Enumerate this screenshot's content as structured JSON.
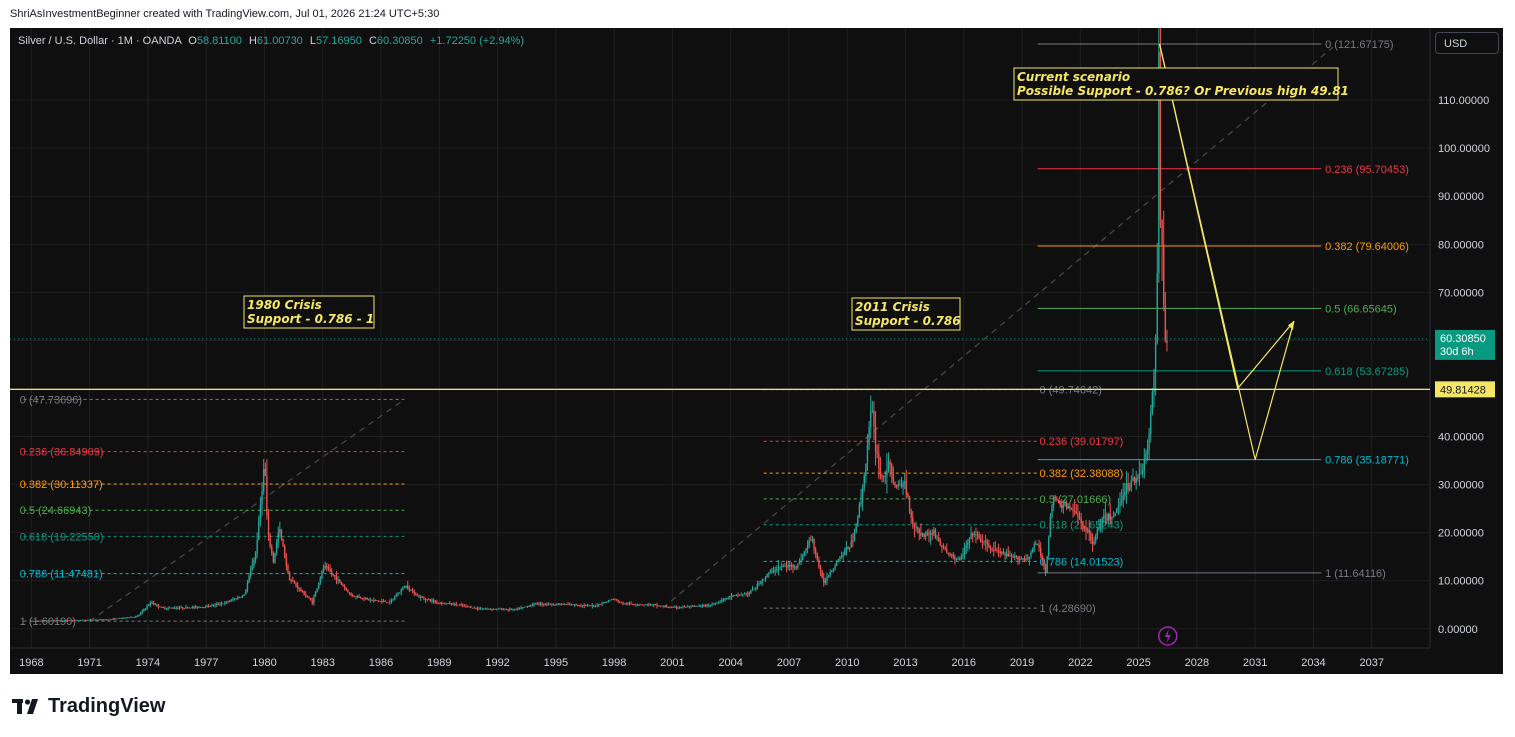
{
  "attribution": "ShriAsInvestmentBeginner created with TradingView.com, Jul 01, 2026 21:24 UTC+5:30",
  "legend": {
    "symbol": "Silver / U.S. Dollar · 1M · OANDA",
    "o_label": "O",
    "o": "58.81100",
    "h_label": "H",
    "h": "61.00730",
    "l_label": "L",
    "l": "57.16950",
    "c_label": "C",
    "c": "60.30850",
    "change": "+1.72250 (+2.94%)"
  },
  "currency_button": "USD",
  "brand": "TradingView",
  "colors": {
    "background": "#0f0f0f",
    "up": "#26a69a",
    "down": "#ef5350",
    "annotation": "#f5e663",
    "fib_0": "#787b86",
    "fib_236": "#f23645",
    "fib_382": "#ff9800",
    "fib_5": "#4caf50",
    "fib_618": "#089981",
    "fib_786": "#00bcd4",
    "price_badge": "#089981"
  },
  "chart_data": {
    "type": "candlestick",
    "title": "Silver / U.S. Dollar · 1M · OANDA",
    "y_axis_ticks": [
      "110.00000",
      "100.00000",
      "90.00000",
      "80.00000",
      "70.00000",
      "60.00000",
      "50.00000",
      "40.00000",
      "30.00000",
      "20.00000",
      "10.00000",
      "0.00000"
    ],
    "y_axis_tick_values": [
      110,
      100,
      90,
      80,
      70,
      60,
      50,
      40,
      30,
      20,
      10,
      0
    ],
    "ylim": [
      -4,
      125
    ],
    "x_axis_ticks": [
      "1968",
      "1971",
      "1974",
      "1977",
      "1980",
      "1983",
      "1986",
      "1989",
      "1992",
      "1995",
      "1998",
      "2001",
      "2004",
      "2007",
      "2010",
      "2013",
      "2016",
      "2019",
      "2022",
      "2025",
      "2028",
      "2031",
      "2034",
      "2037"
    ],
    "x_axis_tick_values": [
      1968,
      1971,
      1974,
      1977,
      1980,
      1983,
      1986,
      1989,
      1992,
      1995,
      1998,
      2001,
      2004,
      2007,
      2010,
      2013,
      2016,
      2019,
      2022,
      2025,
      2028,
      2031,
      2034,
      2037
    ],
    "xlim": [
      1966.9,
      2040.0
    ],
    "current_price": {
      "value": 60.3085,
      "label": "60.30850",
      "countdown": "30d 6h"
    },
    "horizontal_line": {
      "value": 49.81428,
      "label": "49.81428"
    },
    "price_path": [
      [
        1968.0,
        1.6
      ],
      [
        1970.0,
        1.75
      ],
      [
        1972.0,
        1.9
      ],
      [
        1973.5,
        2.6
      ],
      [
        1974.2,
        5.5
      ],
      [
        1974.8,
        4.3
      ],
      [
        1976.0,
        4.4
      ],
      [
        1977.0,
        4.6
      ],
      [
        1978.0,
        5.4
      ],
      [
        1979.0,
        7.0
      ],
      [
        1979.6,
        16.0
      ],
      [
        1980.05,
        35.0
      ],
      [
        1980.2,
        20.0
      ],
      [
        1980.5,
        14.0
      ],
      [
        1980.8,
        21.0
      ],
      [
        1981.3,
        10.5
      ],
      [
        1982.5,
        5.5
      ],
      [
        1983.1,
        13.0
      ],
      [
        1983.5,
        11.5
      ],
      [
        1984.5,
        7.0
      ],
      [
        1985.5,
        6.0
      ],
      [
        1986.5,
        5.5
      ],
      [
        1987.3,
        9.0
      ],
      [
        1988.0,
        6.6
      ],
      [
        1989.0,
        5.4
      ],
      [
        1990.0,
        5.0
      ],
      [
        1991.0,
        4.2
      ],
      [
        1993.0,
        4.0
      ],
      [
        1994.0,
        5.2
      ],
      [
        1995.0,
        5.1
      ],
      [
        1996.0,
        5.0
      ],
      [
        1997.0,
        4.7
      ],
      [
        1998.0,
        6.2
      ],
      [
        1998.5,
        5.2
      ],
      [
        2000.0,
        5.0
      ],
      [
        2001.0,
        4.4
      ],
      [
        2002.0,
        4.6
      ],
      [
        2003.0,
        4.9
      ],
      [
        2004.0,
        6.7
      ],
      [
        2005.0,
        7.4
      ],
      [
        2006.0,
        11.5
      ],
      [
        2006.5,
        12.8
      ],
      [
        2007.5,
        13.2
      ],
      [
        2008.2,
        19.0
      ],
      [
        2008.8,
        9.5
      ],
      [
        2009.5,
        14.0
      ],
      [
        2010.3,
        18.0
      ],
      [
        2010.8,
        28.0
      ],
      [
        2011.3,
        46.0
      ],
      [
        2011.5,
        38.0
      ],
      [
        2011.8,
        31.0
      ],
      [
        2012.2,
        34.0
      ],
      [
        2012.6,
        29.0
      ],
      [
        2013.0,
        30.5
      ],
      [
        2013.4,
        22.0
      ],
      [
        2013.9,
        19.5
      ],
      [
        2014.5,
        20.0
      ],
      [
        2015.0,
        16.5
      ],
      [
        2015.8,
        14.0
      ],
      [
        2016.5,
        20.0
      ],
      [
        2017.5,
        16.5
      ],
      [
        2018.5,
        14.8
      ],
      [
        2019.3,
        14.5
      ],
      [
        2019.8,
        18.0
      ],
      [
        2020.25,
        12.0
      ],
      [
        2020.6,
        27.0
      ],
      [
        2021.0,
        26.0
      ],
      [
        2021.5,
        25.0
      ],
      [
        2022.0,
        23.0
      ],
      [
        2022.7,
        18.0
      ],
      [
        2023.2,
        23.0
      ],
      [
        2023.8,
        23.5
      ],
      [
        2024.3,
        29.0
      ],
      [
        2024.8,
        31.0
      ],
      [
        2025.2,
        33.0
      ],
      [
        2025.5,
        37.0
      ],
      [
        2025.75,
        48.0
      ],
      [
        2025.9,
        58.0
      ],
      [
        2026.0,
        76.0
      ],
      [
        2026.08,
        121.0
      ],
      [
        2026.17,
        85.0
      ],
      [
        2026.3,
        73.0
      ],
      [
        2026.42,
        60.3
      ]
    ],
    "fib_sets": [
      {
        "name": "1980 retracement",
        "levels": [
          {
            "ratio": "0",
            "value": 47.73696,
            "label": "0 (47.73696)",
            "color": "#787b86"
          },
          {
            "ratio": "0.236",
            "value": 36.84909,
            "label": "0.236 (36.84909)",
            "color": "#f23645"
          },
          {
            "ratio": "0.382",
            "value": 30.11337,
            "label": "0.382 (30.11337)",
            "color": "#ff9800"
          },
          {
            "ratio": "0.5",
            "value": 24.66943,
            "label": "0.5 (24.66943)",
            "color": "#4caf50"
          },
          {
            "ratio": "0.618",
            "value": 19.2255,
            "label": "0.618 (19.22550)",
            "color": "#089981"
          },
          {
            "ratio": "0.786",
            "value": 11.47481,
            "label": "0.786 (11.47481)",
            "color": "#00bcd4"
          },
          {
            "ratio": "1",
            "value": 1.6019,
            "label": "1 (1.60190)",
            "color": "#787b86"
          }
        ]
      },
      {
        "name": "2011 retracement",
        "levels": [
          {
            "ratio": "0",
            "value": 49.74642,
            "label": "0 (49.74642)",
            "color": "#787b86"
          },
          {
            "ratio": "0.236",
            "value": 39.01797,
            "label": "0.236 (39.01797)",
            "color": "#f23645"
          },
          {
            "ratio": "0.382",
            "value": 32.38088,
            "label": "0.382 (32.38088)",
            "color": "#ff9800"
          },
          {
            "ratio": "0.5",
            "value": 27.01666,
            "label": "0.5 (27.01666)",
            "color": "#4caf50"
          },
          {
            "ratio": "0.618",
            "value": 21.65243,
            "label": "0.618 (21.65243)",
            "color": "#089981"
          },
          {
            "ratio": "0.786",
            "value": 14.01523,
            "label": "0.786 (14.01523)",
            "color": "#00bcd4"
          },
          {
            "ratio": "1",
            "value": 4.2869,
            "label": "1 (4.28690)",
            "color": "#787b86"
          }
        ]
      },
      {
        "name": "2026 retracement",
        "levels": [
          {
            "ratio": "0",
            "value": 121.67175,
            "label": "0 (121.67175)",
            "color": "#787b86"
          },
          {
            "ratio": "0.236",
            "value": 95.70453,
            "label": "0.236 (95.70453)",
            "color": "#f23645"
          },
          {
            "ratio": "0.382",
            "value": 79.64006,
            "label": "0.382 (79.64006)",
            "color": "#ff9800"
          },
          {
            "ratio": "0.5",
            "value": 66.65645,
            "label": "0.5 (66.65645)",
            "color": "#4caf50"
          },
          {
            "ratio": "0.618",
            "value": 53.67285,
            "label": "0.618 (53.67285)",
            "color": "#089981"
          },
          {
            "ratio": "0.786",
            "value": 35.18771,
            "label": "0.786 (35.18771)",
            "color": "#00bcd4"
          },
          {
            "ratio": "1",
            "value": 11.64116,
            "label": "1 (11.64116)",
            "color": "#787b86"
          }
        ]
      }
    ],
    "annotations": [
      {
        "line1": "1980 Crisis",
        "line2": "Support - 0.786 - 1"
      },
      {
        "line1": "2011 Crisis",
        "line2": "Support - 0.786"
      },
      {
        "line1": "Current scenario",
        "line2": "Possible Support - 0.786? Or Previous high 49.81"
      }
    ],
    "projection_path": [
      [
        2026.08,
        121.67
      ],
      [
        2030.1,
        50.0
      ],
      [
        2033.0,
        64.0
      ]
    ],
    "projection_path_2": [
      [
        2026.08,
        121.67
      ],
      [
        2031.0,
        35.19
      ],
      [
        2033.0,
        64.0
      ]
    ]
  }
}
